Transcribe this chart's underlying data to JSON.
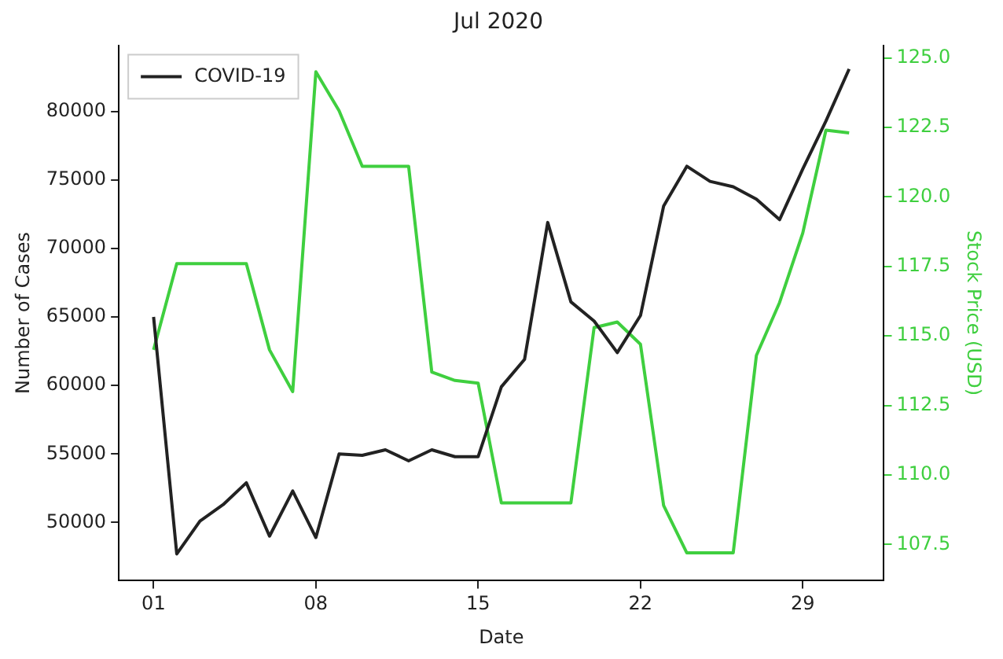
{
  "chart_data": {
    "type": "line",
    "title": "Jul 2020",
    "xlabel": "Date",
    "ylabel": "Number of Cases",
    "y2label": "Stock Price (USD)",
    "x": [
      1,
      2,
      3,
      4,
      5,
      6,
      7,
      8,
      9,
      10,
      11,
      12,
      13,
      14,
      15,
      16,
      17,
      18,
      19,
      20,
      21,
      22,
      23,
      24,
      25,
      26,
      27,
      28,
      29,
      30,
      31
    ],
    "xlim": [
      -0.5,
      32.5
    ],
    "xticks": [
      {
        "value": 1,
        "label": "01"
      },
      {
        "value": 8,
        "label": "08"
      },
      15,
      22,
      29
    ],
    "ylim": [
      45750,
      84830
    ],
    "yticks": [
      50000,
      55000,
      60000,
      65000,
      70000,
      75000,
      80000
    ],
    "y2lim": [
      106.2,
      125.45
    ],
    "y2ticks": [
      {
        "value": 107.5,
        "label": "107.5"
      },
      {
        "value": 110,
        "label": "110.0"
      },
      {
        "value": 112.5,
        "label": "112.5"
      },
      {
        "value": 115,
        "label": "115.0"
      },
      {
        "value": 117.5,
        "label": "117.5"
      },
      {
        "value": 120,
        "label": "120.0"
      },
      {
        "value": 122.5,
        "label": "122.5"
      },
      {
        "value": 125,
        "label": "125.0"
      }
    ],
    "series": [
      {
        "name": "COVID-19",
        "color": "#222222",
        "values": [
          65000,
          47700,
          50100,
          51300,
          52900,
          49000,
          52300,
          48900,
          55000,
          54900,
          55300,
          54500,
          55300,
          54800,
          54800,
          59900,
          61900,
          71900,
          66100,
          64700,
          62400,
          65100,
          73100,
          76000,
          74900,
          74500,
          73600,
          72100,
          75800,
          79300,
          83100
        ]
      },
      {
        "color": "#3fcf3f",
        "axis": "y2",
        "values": [
          114.5,
          117.6,
          117.6,
          117.6,
          117.6,
          114.5,
          113.0,
          124.5,
          123.1,
          121.1,
          121.1,
          121.1,
          113.7,
          113.4,
          113.3,
          109.0,
          109.0,
          109.0,
          109.0,
          115.3,
          115.5,
          114.7,
          108.9,
          107.2,
          107.2,
          107.2,
          114.3,
          116.2,
          118.7,
          122.4,
          122.3
        ]
      }
    ],
    "legend": "top left",
    "grid": false
  }
}
